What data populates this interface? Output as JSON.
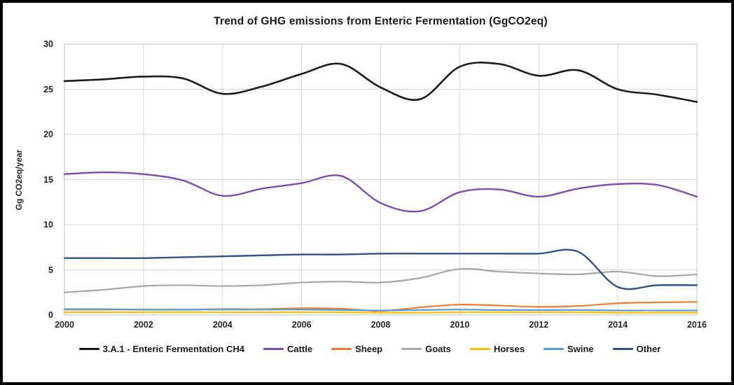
{
  "chart_data": {
    "type": "line",
    "title": "Trend of GHG emissions from Enteric Fermentation (GgCO2eq)",
    "xlabel": "",
    "ylabel": "Gg CO2eq/year",
    "x": [
      2000,
      2001,
      2002,
      2003,
      2004,
      2005,
      2006,
      2007,
      2008,
      2009,
      2010,
      2011,
      2012,
      2013,
      2014,
      2015,
      2016
    ],
    "x_ticks": [
      2000,
      2002,
      2004,
      2006,
      2008,
      2010,
      2012,
      2014,
      2016
    ],
    "y_ticks": [
      0,
      5,
      10,
      15,
      20,
      25,
      30
    ],
    "ylim": [
      0,
      30
    ],
    "grid": true,
    "smooth_lines": true,
    "legend_position": "bottom",
    "series": [
      {
        "name": "3.A.1 - Enteric Fermentation CH4",
        "color": "#1A1A1A",
        "width": 2.6,
        "values": [
          25.9,
          26.1,
          26.4,
          26.2,
          24.5,
          25.3,
          26.7,
          27.8,
          25.2,
          23.9,
          27.5,
          27.8,
          26.5,
          27.1,
          25.0,
          24.4,
          23.6
        ]
      },
      {
        "name": "Cattle",
        "color": "#7A4FA8",
        "width": 2.4,
        "values": [
          15.6,
          15.8,
          15.6,
          14.9,
          13.2,
          14.0,
          14.6,
          15.4,
          12.4,
          11.5,
          13.6,
          13.9,
          13.1,
          14.0,
          14.5,
          14.4,
          13.1
        ]
      },
      {
        "name": "Sheep",
        "color": "#ED7D31",
        "width": 2.2,
        "values": [
          0.6,
          0.6,
          0.6,
          0.6,
          0.65,
          0.65,
          0.75,
          0.7,
          0.45,
          0.85,
          1.15,
          1.05,
          0.9,
          1.0,
          1.3,
          1.4,
          1.45
        ]
      },
      {
        "name": "Goats",
        "color": "#A6A6A6",
        "width": 2.2,
        "values": [
          2.5,
          2.8,
          3.2,
          3.3,
          3.2,
          3.3,
          3.6,
          3.7,
          3.6,
          4.1,
          5.1,
          4.8,
          4.6,
          4.5,
          4.8,
          4.3,
          4.5
        ]
      },
      {
        "name": "Horses",
        "color": "#FFC000",
        "width": 2.2,
        "values": [
          0.3,
          0.3,
          0.3,
          0.3,
          0.3,
          0.3,
          0.3,
          0.3,
          0.25,
          0.25,
          0.3,
          0.3,
          0.3,
          0.3,
          0.25,
          0.25,
          0.25
        ]
      },
      {
        "name": "Swine",
        "color": "#5B9BD5",
        "width": 2.2,
        "values": [
          0.65,
          0.65,
          0.6,
          0.6,
          0.6,
          0.6,
          0.6,
          0.55,
          0.5,
          0.55,
          0.6,
          0.55,
          0.55,
          0.55,
          0.5,
          0.5,
          0.5
        ]
      },
      {
        "name": "Other",
        "color": "#33547E",
        "width": 2.4,
        "values": [
          6.3,
          6.3,
          6.3,
          6.4,
          6.5,
          6.6,
          6.7,
          6.7,
          6.8,
          6.8,
          6.8,
          6.8,
          6.8,
          7.0,
          3.1,
          3.3,
          3.3
        ]
      }
    ]
  },
  "style": {
    "gridline_color": "#D6D6D6",
    "plot_border_color": "#BFBFBF",
    "frame_border_color": "#000000",
    "background_color": "#FFFFFF"
  }
}
